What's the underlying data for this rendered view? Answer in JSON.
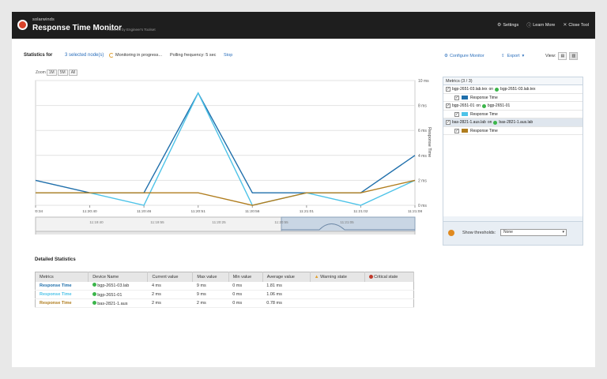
{
  "header": {
    "brand": "solarwinds",
    "title": "Response Time Monitor",
    "powered_by": "Powered by Engineer's Toolset",
    "settings": "Settings",
    "learn_more": "Learn More",
    "close_tool": "Close Tool"
  },
  "toolbar": {
    "stats_label": "Statistics for",
    "selected_nodes": "3 selected node(s)",
    "monitoring": "Monitoring in progress...",
    "polling": "Polling frequency: 5 sec",
    "stop": "Stop",
    "configure": "Configure Monitor",
    "export": "Export",
    "view": "View:"
  },
  "zoom": {
    "label": "Zoom",
    "options": [
      "1M",
      "5M",
      "All"
    ]
  },
  "chart_data": {
    "type": "line",
    "x": [
      "11:20:34",
      "11:20:40",
      "11:20:46",
      "11:20:51",
      "11:20:56",
      "11:21:01",
      "11:21:02",
      "11:21:08"
    ],
    "series": [
      {
        "name": "bgp-2651-03.lab.tex",
        "color": "#1f6fab",
        "values": [
          2,
          1,
          1,
          9,
          1,
          1,
          1,
          4
        ]
      },
      {
        "name": "bgp-2651-01",
        "color": "#4dc3e8",
        "values": [
          1,
          1,
          0,
          9,
          0,
          1,
          0,
          2
        ]
      },
      {
        "name": "bas-2821-1.aus.lab",
        "color": "#b07d1e",
        "values": [
          1,
          1,
          1,
          1,
          0,
          1,
          1,
          2
        ]
      }
    ],
    "yticks": [
      "10 ms",
      "8 ms",
      "6 ms",
      "4 ms",
      "2 ms",
      "0 ms"
    ],
    "ylabel": "Response Time",
    "ylim": [
      0,
      10
    ],
    "nav_ticks": [
      "11:19:40",
      "11:19:55",
      "11:20:25",
      "11:20:55",
      "11:21:05"
    ]
  },
  "metrics_panel": {
    "title": "Metrics (3 / 3)",
    "nodes": [
      {
        "name": "bgp-2651-03.lab.tex",
        "on": "on",
        "node": "bgp-2651-03.lab.tex",
        "metric": "Response Time",
        "color": "#1f6fab"
      },
      {
        "name": "bgp-2651-01",
        "on": "on",
        "node": "bgp-2651-01",
        "metric": "Response Time",
        "color": "#4dc3e8"
      },
      {
        "name": "bas-2821-1.aus.lab",
        "on": "on",
        "node": "bas-2821-1.aus.lab",
        "metric": "Response Time",
        "color": "#b07d1e"
      }
    ],
    "thresholds_label": "Show thresholds:",
    "thresholds_value": "None"
  },
  "details": {
    "title": "Detailed Statistics",
    "columns": [
      "Metrics",
      "Device Name",
      "Current value",
      "Max value",
      "Min value",
      "Average value",
      "Warning state",
      "Critical state"
    ],
    "rows": [
      {
        "metric": "Response Time",
        "device": "bgp-2651-03.lab",
        "current": "4 ms",
        "max": "9 ms",
        "min": "0 ms",
        "avg": "1.81 ms",
        "color": "#1f6fab"
      },
      {
        "metric": "Response Time",
        "device": "bgp-2651-01",
        "current": "2 ms",
        "max": "9 ms",
        "min": "0 ms",
        "avg": "1.06 ms",
        "color": "#4dc3e8"
      },
      {
        "metric": "Response Time",
        "device": "bas-2821-1.aus",
        "current": "2 ms",
        "max": "2 ms",
        "min": "0 ms",
        "avg": "0.78 ms",
        "color": "#b07d1e"
      }
    ]
  }
}
